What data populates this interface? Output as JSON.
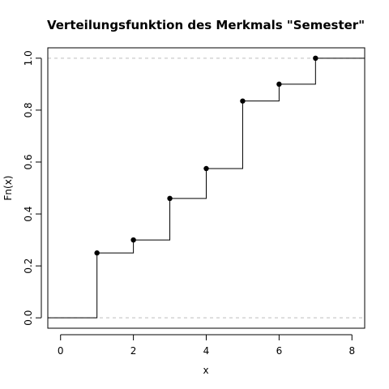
{
  "chart_data": {
    "type": "line",
    "step": true,
    "title": "Verteilungsfunktion des Merkmals \"Semester\"",
    "xlabel": "x",
    "ylabel": "Fn(x)",
    "xlim": [
      -0.35,
      8.35
    ],
    "ylim": [
      -0.04,
      1.04
    ],
    "x_ticks": [
      0,
      2,
      4,
      6,
      8
    ],
    "y_ticks": [
      0.0,
      0.2,
      0.4,
      0.6,
      0.8,
      1.0
    ],
    "x_tick_labels": [
      "0",
      "2",
      "4",
      "6",
      "8"
    ],
    "y_tick_labels": [
      "0.0",
      "0.2",
      "0.4",
      "0.6",
      "0.8",
      "1.0"
    ],
    "reference_lines": [
      0,
      1
    ],
    "reference_line_style": "dashed",
    "reference_line_color": "#bdbdbd",
    "points": [
      {
        "x": 1,
        "y": 0.25
      },
      {
        "x": 2,
        "y": 0.3
      },
      {
        "x": 3,
        "y": 0.46
      },
      {
        "x": 4,
        "y": 0.575
      },
      {
        "x": 5,
        "y": 0.835
      },
      {
        "x": 6,
        "y": 0.9
      },
      {
        "x": 7,
        "y": 1.0
      }
    ],
    "line_color": "#000000",
    "point_color": "#000000"
  }
}
